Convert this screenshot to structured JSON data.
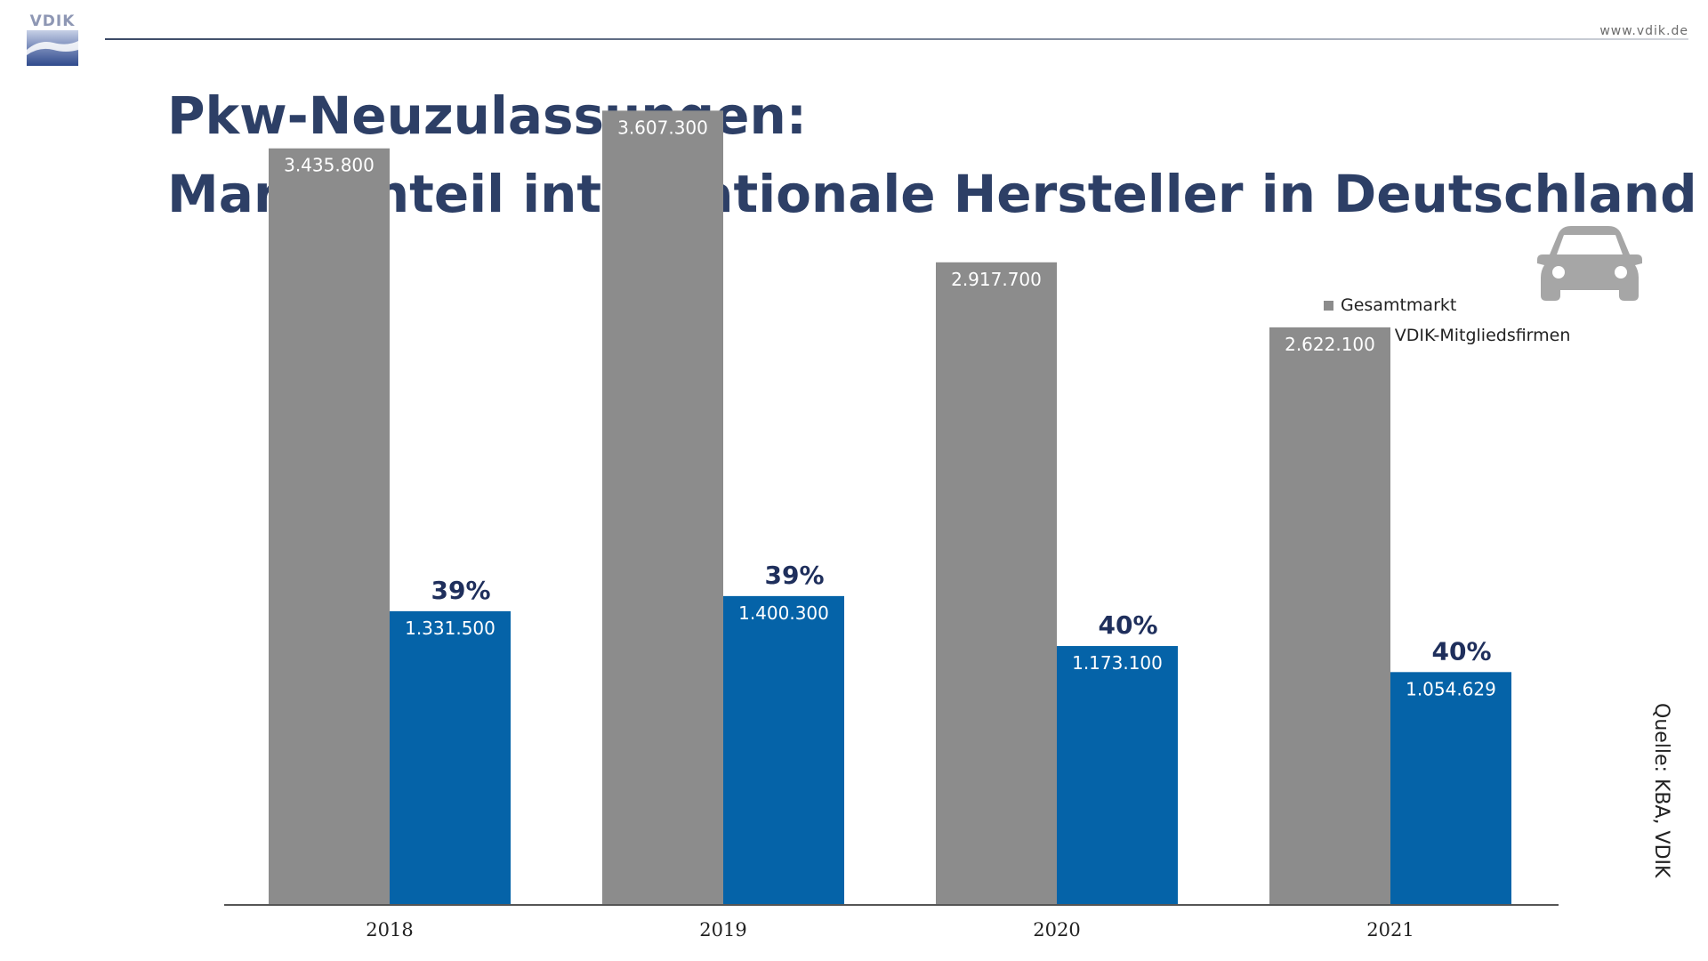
{
  "header": {
    "logo_text": "VDIK",
    "website": "www.vdik.de"
  },
  "title": {
    "line1": "Pkw-Neuzulassungen:",
    "line2": "Marktanteil internationale Hersteller in Deutschland"
  },
  "source": "Quelle: KBA, VDIK",
  "icons": {
    "logo": "vdik-logo-icon",
    "car": "car-icon"
  },
  "colors": {
    "title": "#2d3f66",
    "gesamtmarkt": "#8c8c8c",
    "vdik": "#0563a8",
    "percent": "#1f2f5c"
  },
  "chart_data": {
    "type": "bar",
    "categories": [
      "2018",
      "2019",
      "2020",
      "2021"
    ],
    "series": [
      {
        "name": "Gesamtmarkt",
        "values": [
          3435800,
          3607300,
          2917700,
          2622100
        ],
        "labels": [
          "3.435.800",
          "3.607.300",
          "2.917.700",
          "2.622.100"
        ]
      },
      {
        "name": "Anteil VDIK-Mitgliedsfirmen",
        "values": [
          1331500,
          1400300,
          1173100,
          1054629
        ],
        "labels": [
          "1.331.500",
          "1.400.300",
          "1.173.100",
          "1.054.629"
        ]
      }
    ],
    "annotations": [
      "39%",
      "39%",
      "40%",
      "40%"
    ],
    "legend_position": "top-right",
    "grid": false,
    "ylim": [
      0,
      3900000
    ]
  }
}
